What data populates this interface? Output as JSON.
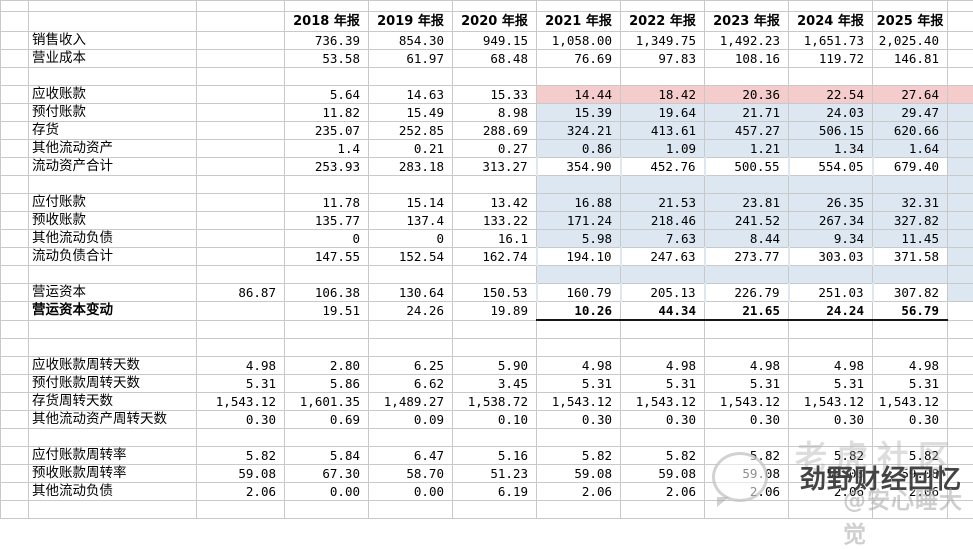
{
  "colors": {
    "highlight_pink": "#f4cccb",
    "highlight_blue": "#dce7f2",
    "gridline": "#c9c9c9",
    "text": "#000000"
  },
  "header": {
    "years": [
      "2018 年报",
      "2019 年报",
      "2020 年报",
      "2021 年报",
      "2022 年报",
      "2023 年报",
      "2024 年报",
      "2025 年报"
    ]
  },
  "rows": [
    {
      "label": "销售收入",
      "values": [
        "",
        "736.39",
        "854.30",
        "949.15",
        "1,058.00",
        "1,349.75",
        "1,492.23",
        "1,651.73",
        "2,025.40"
      ]
    },
    {
      "label": "营业成本",
      "values": [
        "",
        "53.58",
        "61.97",
        "68.48",
        "76.69",
        "97.83",
        "108.16",
        "119.72",
        "146.81"
      ]
    },
    {
      "label": "",
      "values": [
        "",
        "",
        "",
        "",
        "",
        "",
        "",
        "",
        ""
      ]
    },
    {
      "label": "应收账款",
      "band": "pink",
      "values": [
        "",
        "5.64",
        "14.63",
        "15.33",
        "14.44",
        "18.42",
        "20.36",
        "22.54",
        "27.64"
      ]
    },
    {
      "label": "预付账款",
      "band": "blue",
      "values": [
        "",
        "11.82",
        "15.49",
        "8.98",
        "15.39",
        "19.64",
        "21.71",
        "24.03",
        "29.47"
      ]
    },
    {
      "label": "存货",
      "band": "blue",
      "values": [
        "",
        "235.07",
        "252.85",
        "288.69",
        "324.21",
        "413.61",
        "457.27",
        "506.15",
        "620.66"
      ]
    },
    {
      "label": "其他流动资产",
      "band": "blue",
      "values": [
        "",
        "1.4",
        "0.21",
        "0.27",
        "0.86",
        "1.09",
        "1.21",
        "1.34",
        "1.64"
      ]
    },
    {
      "label": "流动资产合计",
      "band": "blue",
      "total": true,
      "values": [
        "",
        "253.93",
        "283.18",
        "313.27",
        "354.90",
        "452.76",
        "500.55",
        "554.05",
        "679.40"
      ]
    },
    {
      "label": "",
      "band": "blue",
      "values": [
        "",
        "",
        "",
        "",
        "",
        "",
        "",
        "",
        ""
      ]
    },
    {
      "label": "应付账款",
      "band": "blue",
      "values": [
        "",
        "11.78",
        "15.14",
        "13.42",
        "16.88",
        "21.53",
        "23.81",
        "26.35",
        "32.31"
      ]
    },
    {
      "label": "预收账款",
      "band": "blue",
      "values": [
        "",
        "135.77",
        "137.4",
        "133.22",
        "171.24",
        "218.46",
        "241.52",
        "267.34",
        "327.82"
      ]
    },
    {
      "label": "其他流动负债",
      "band": "blue",
      "values": [
        "",
        "0",
        "0",
        "16.1",
        "5.98",
        "7.63",
        "8.44",
        "9.34",
        "11.45"
      ]
    },
    {
      "label": "流动负债合计",
      "band": "blue",
      "total": true,
      "values": [
        "",
        "147.55",
        "152.54",
        "162.74",
        "194.10",
        "247.63",
        "273.77",
        "303.03",
        "371.58"
      ]
    },
    {
      "label": "",
      "band": "blue",
      "values": [
        "",
        "",
        "",
        "",
        "",
        "",
        "",
        "",
        ""
      ]
    },
    {
      "label": "营运资本",
      "band": "blue",
      "total": true,
      "values": [
        "86.87",
        "106.38",
        "130.64",
        "150.53",
        "160.79",
        "205.13",
        "226.79",
        "251.03",
        "307.82"
      ]
    },
    {
      "label": "营运资本变动",
      "label_bold": true,
      "bold_from": 4,
      "underline": true,
      "values": [
        "",
        "19.51",
        "24.26",
        "19.89",
        "10.26",
        "44.34",
        "21.65",
        "24.24",
        "56.79"
      ]
    },
    {
      "label": "",
      "values": [
        "",
        "",
        "",
        "",
        "",
        "",
        "",
        "",
        ""
      ]
    },
    {
      "label": "",
      "values": [
        "",
        "",
        "",
        "",
        "",
        "",
        "",
        "",
        ""
      ]
    },
    {
      "label": "应收账款周转天数",
      "values": [
        "4.98",
        "2.80",
        "6.25",
        "5.90",
        "4.98",
        "4.98",
        "4.98",
        "4.98",
        "4.98"
      ]
    },
    {
      "label": "预付账款周转天数",
      "values": [
        "5.31",
        "5.86",
        "6.62",
        "3.45",
        "5.31",
        "5.31",
        "5.31",
        "5.31",
        "5.31"
      ]
    },
    {
      "label": "存货周转天数",
      "values": [
        "1,543.12",
        "1,601.35",
        "1,489.27",
        "1,538.72",
        "1,543.12",
        "1,543.12",
        "1,543.12",
        "1,543.12",
        "1,543.12"
      ]
    },
    {
      "label": "其他流动资产周转天数",
      "values": [
        "0.30",
        "0.69",
        "0.09",
        "0.10",
        "0.30",
        "0.30",
        "0.30",
        "0.30",
        "0.30"
      ]
    },
    {
      "label": "",
      "values": [
        "",
        "",
        "",
        "",
        "",
        "",
        "",
        "",
        ""
      ]
    },
    {
      "label": "应付账款周转率",
      "values": [
        "5.82",
        "5.84",
        "6.47",
        "5.16",
        "5.82",
        "5.82",
        "5.82",
        "5.82",
        "5.82"
      ]
    },
    {
      "label": "预收账款周转率",
      "values": [
        "59.08",
        "67.30",
        "58.70",
        "51.23",
        "59.08",
        "59.08",
        "59.08",
        "59.08",
        "59.08"
      ]
    },
    {
      "label": "其他流动负债",
      "values": [
        "2.06",
        "0.00",
        "0.00",
        "6.19",
        "2.06",
        "2.06",
        "2.06",
        "2.06",
        "2.06"
      ]
    },
    {
      "label": "",
      "values": [
        "",
        "",
        "",
        "",
        "",
        "",
        "",
        "",
        ""
      ]
    }
  ],
  "watermark": {
    "platform": "老虎社区",
    "stamp": "劲野财经回忆",
    "handle": "@安心睡大觉"
  }
}
